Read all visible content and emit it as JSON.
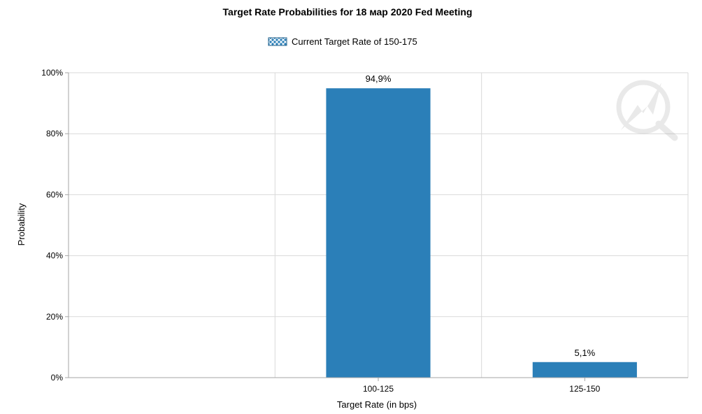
{
  "chart_data": {
    "type": "bar",
    "title": "Target Rate Probabilities for 18 мар 2020 Fed Meeting",
    "xlabel": "Target Rate (in bps)",
    "ylabel": "Probability",
    "categories": [
      "",
      "100-125",
      "125-150"
    ],
    "values": [
      null,
      94.9,
      5.1
    ],
    "data_labels": [
      "",
      "94,9%",
      "5,1%"
    ],
    "ylim": [
      0,
      100
    ],
    "yticks": [
      0,
      20,
      40,
      60,
      80,
      100
    ],
    "ytick_labels": [
      "0%",
      "20%",
      "40%",
      "60%",
      "80%",
      "100%"
    ],
    "grid": true,
    "legend": {
      "label": "Current Target Rate of 150-175",
      "position": "top"
    },
    "colors": {
      "bar": "#2b7fb8",
      "grid": "#d9d9d9",
      "axis": "#a6a6a6",
      "legend_swatch": "#2b7fb8"
    }
  },
  "watermark": {
    "icon": "cme-fedwatch-logo-icon"
  }
}
